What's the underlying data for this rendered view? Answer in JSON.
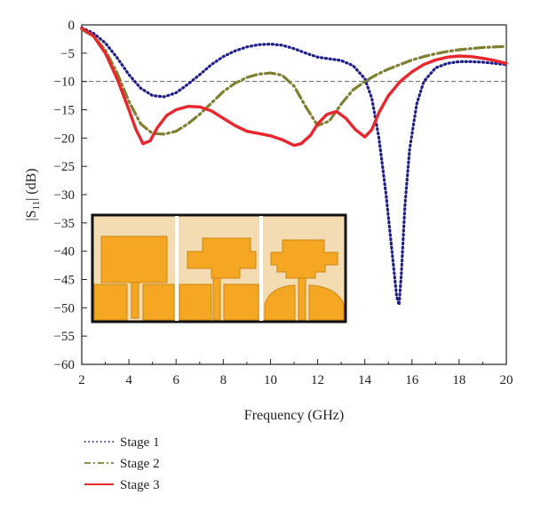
{
  "chart_data": {
    "type": "line",
    "title": "",
    "xlabel": "Frequency (GHz)",
    "ylabel_parts": {
      "pre": "|S",
      "sub": "11",
      "post": "| (dB)"
    },
    "xlim": [
      2,
      20
    ],
    "ylim": [
      -60,
      0
    ],
    "xticks": [
      2,
      4,
      6,
      8,
      10,
      12,
      14,
      16,
      18,
      20
    ],
    "xtick_labels": [
      "2",
      "4",
      "6",
      "8",
      "10",
      "12",
      "14",
      "16",
      "18",
      "20"
    ],
    "yticks": [
      0,
      -5,
      -10,
      -15,
      -20,
      -25,
      -30,
      -35,
      -40,
      -45,
      -50,
      -55,
      -60
    ],
    "ytick_labels": [
      "0",
      "−5",
      "−10",
      "−15",
      "−20",
      "−25",
      "−30",
      "−35",
      "−40",
      "−45",
      "−50",
      "−55",
      "−60"
    ],
    "reference_line": {
      "y": -10,
      "style": "dashed",
      "color": "#666666"
    },
    "grid": false,
    "legend_position": "below-left",
    "series": [
      {
        "name": "Stage 1",
        "style": "dotted",
        "color": "#1f1f8c",
        "x": [
          2,
          2.5,
          3,
          3.5,
          4,
          4.5,
          5,
          5.5,
          6,
          6.5,
          7,
          7.5,
          8,
          8.5,
          9,
          9.5,
          10,
          10.5,
          11,
          11.5,
          12,
          12.5,
          13,
          13.5,
          14,
          14.3,
          14.6,
          14.9,
          15.1,
          15.25,
          15.35,
          15.45,
          15.55,
          15.7,
          15.9,
          16.2,
          16.5,
          17,
          17.5,
          18,
          18.5,
          19,
          19.5,
          20
        ],
        "y": [
          -0.5,
          -1.5,
          -3.2,
          -5.8,
          -8.8,
          -11.2,
          -12.5,
          -12.7,
          -12.0,
          -10.5,
          -8.8,
          -7.0,
          -5.6,
          -4.6,
          -3.9,
          -3.5,
          -3.4,
          -3.6,
          -4.2,
          -5.0,
          -5.7,
          -6.0,
          -6.3,
          -7.2,
          -9.5,
          -13.0,
          -20.0,
          -30.0,
          -38.0,
          -44.0,
          -48.0,
          -49.5,
          -44.0,
          -32.0,
          -22.0,
          -14.0,
          -10.0,
          -7.6,
          -6.8,
          -6.5,
          -6.5,
          -6.6,
          -6.8,
          -7.0
        ]
      },
      {
        "name": "Stage 2",
        "style": "dash-dot",
        "color": "#7f7f32",
        "x": [
          2,
          2.5,
          3,
          3.5,
          4,
          4.5,
          5,
          5.5,
          6,
          6.5,
          7,
          7.5,
          8,
          8.5,
          9,
          9.5,
          10,
          10.5,
          11,
          11.5,
          12,
          12.5,
          13,
          13.5,
          14,
          14.5,
          15,
          15.5,
          16,
          16.5,
          17,
          17.5,
          18,
          18.5,
          19,
          19.5,
          20
        ],
        "y": [
          -0.8,
          -2.0,
          -4.5,
          -8.5,
          -13.5,
          -17.5,
          -19.2,
          -19.3,
          -18.8,
          -17.5,
          -15.8,
          -13.8,
          -11.8,
          -10.3,
          -9.3,
          -8.7,
          -8.5,
          -8.9,
          -10.8,
          -14.5,
          -17.8,
          -17.0,
          -14.0,
          -11.5,
          -10.0,
          -8.8,
          -7.8,
          -7.0,
          -6.2,
          -5.6,
          -5.1,
          -4.7,
          -4.4,
          -4.2,
          -4.0,
          -3.9,
          -3.8
        ]
      },
      {
        "name": "Stage 3",
        "style": "solid",
        "color": "#e8262b",
        "x": [
          2,
          2.5,
          3,
          3.5,
          4,
          4.3,
          4.6,
          4.9,
          5.2,
          5.6,
          6,
          6.5,
          7,
          7.5,
          8,
          8.5,
          9,
          9.5,
          10,
          10.5,
          11,
          11.3,
          11.7,
          12,
          12.4,
          12.8,
          13.2,
          13.6,
          14,
          14.3,
          14.6,
          15,
          15.5,
          16,
          16.5,
          17,
          17.5,
          18,
          18.5,
          19,
          19.5,
          20
        ],
        "y": [
          -0.6,
          -2.0,
          -5.0,
          -9.5,
          -15.0,
          -18.5,
          -21.0,
          -20.5,
          -18.2,
          -16.0,
          -15.0,
          -14.4,
          -14.5,
          -15.2,
          -16.5,
          -17.8,
          -18.8,
          -19.2,
          -19.6,
          -20.3,
          -21.3,
          -21.0,
          -19.5,
          -17.5,
          -15.8,
          -15.3,
          -16.5,
          -18.5,
          -19.8,
          -18.5,
          -15.5,
          -12.5,
          -10.0,
          -8.3,
          -7.0,
          -6.2,
          -5.7,
          -5.5,
          -5.6,
          -5.9,
          -6.3,
          -6.8
        ]
      }
    ]
  },
  "inset": {
    "panel_fill": "#f3dcb2",
    "patch_color": "#f5a623",
    "patch_edge": "#c98710",
    "border_color": "#111111"
  }
}
